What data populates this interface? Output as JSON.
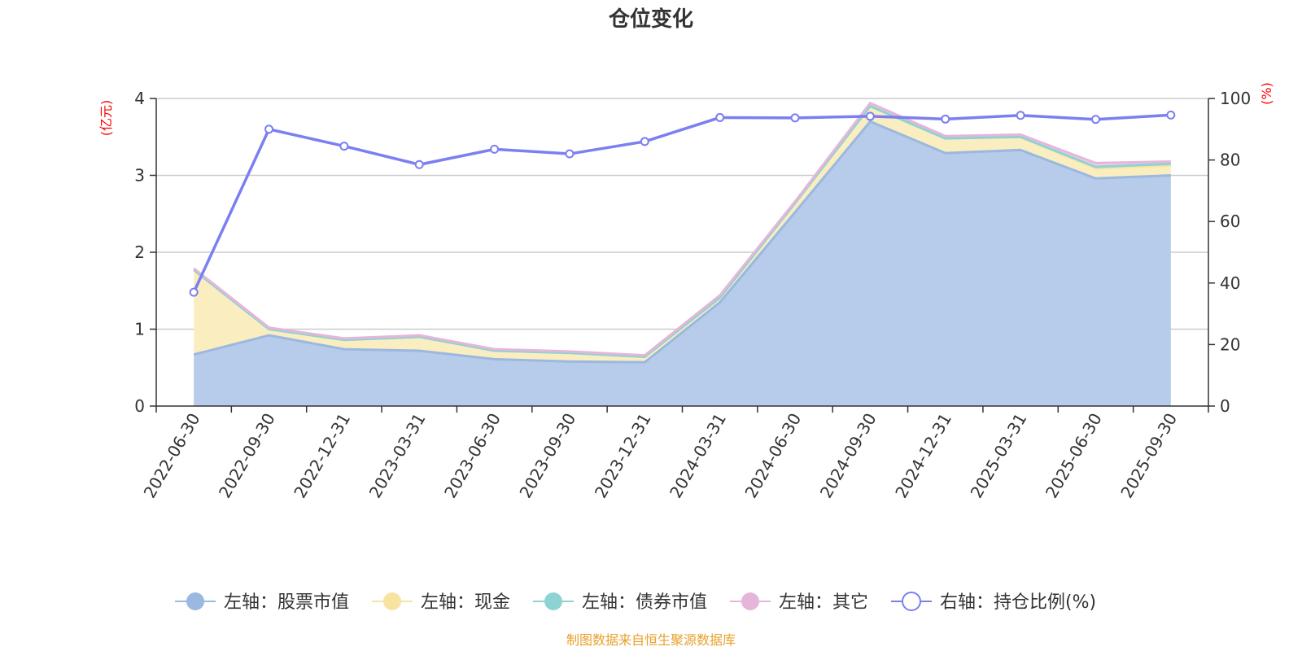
{
  "chart_data": {
    "type": "area",
    "title": "仓位变化",
    "x": [
      "2022-06-30",
      "2022-09-30",
      "2022-12-31",
      "2023-03-31",
      "2023-06-30",
      "2023-09-30",
      "2023-12-31",
      "2024-03-31",
      "2024-06-30",
      "2024-09-30",
      "2024-12-31",
      "2025-03-31",
      "2025-06-30",
      "2025-09-30"
    ],
    "left_axis": {
      "unit": "(亿元)",
      "ylim": [
        0,
        4
      ],
      "ticks": [
        "0",
        "1",
        "2",
        "3",
        "4"
      ]
    },
    "right_axis": {
      "unit": "(%)",
      "ylim": [
        0,
        100
      ],
      "ticks": [
        "0",
        "20",
        "40",
        "60",
        "80",
        "100"
      ]
    },
    "stacked": true,
    "series": [
      {
        "name": "左轴：股票市值",
        "axis": "left",
        "type": "area",
        "color": "#9bb8e0",
        "fill": "#b7cbea",
        "values": [
          0.67,
          0.92,
          0.74,
          0.72,
          0.61,
          0.58,
          0.57,
          1.35,
          2.52,
          3.7,
          3.29,
          3.33,
          2.96,
          3.0
        ]
      },
      {
        "name": "左轴：现金",
        "axis": "left",
        "type": "area",
        "color": "#f7e4a1",
        "fill": "#faeec0",
        "values": [
          1.1,
          0.08,
          0.12,
          0.18,
          0.11,
          0.11,
          0.07,
          0.06,
          0.12,
          0.2,
          0.19,
          0.17,
          0.13,
          0.13
        ]
      },
      {
        "name": "左轴：债券市值",
        "axis": "left",
        "type": "area",
        "color": "#8ed3d4",
        "fill": "#bfe6e6",
        "values": [
          0,
          0,
          0,
          0,
          0,
          0,
          0,
          0,
          0,
          0,
          0,
          0,
          0.02,
          0.02
        ]
      },
      {
        "name": "左轴：其它",
        "axis": "left",
        "type": "area",
        "color": "#e6b6da",
        "fill": "#f0d0e8",
        "values": [
          0.02,
          0.02,
          0.02,
          0.02,
          0.02,
          0.02,
          0.02,
          0.03,
          0.02,
          0.04,
          0.03,
          0.03,
          0.05,
          0.03
        ]
      },
      {
        "name": "右轴：持仓比例(%)",
        "axis": "right",
        "type": "line",
        "color": "#7b7ff0",
        "values": [
          37,
          90,
          84.5,
          78.5,
          83.5,
          82,
          86,
          93.8,
          93.7,
          94.2,
          93.3,
          94.5,
          93.2,
          94.6
        ]
      }
    ],
    "legend_position": "bottom-center",
    "grid": true,
    "source_note": "制图数据来自恒生聚源数据库",
    "source_color": "#e8a02a"
  }
}
